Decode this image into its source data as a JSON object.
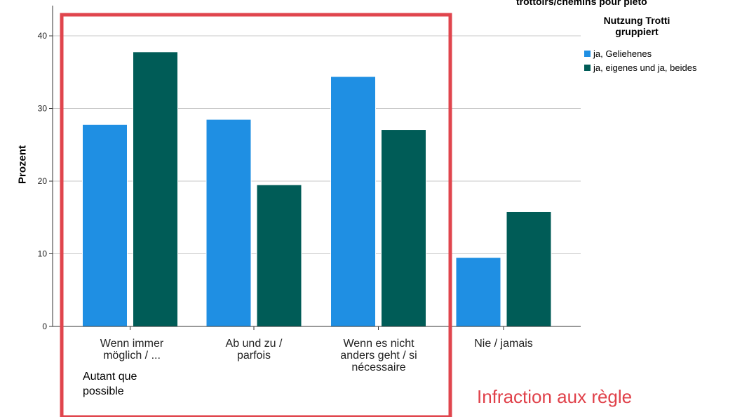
{
  "chart_data": {
    "type": "bar",
    "categories": [
      "Wenn immer\nmöglich / ...",
      "Ab und zu /\nparfois",
      "Wenn es nicht\nanders geht / si\nnécessaire",
      "Nie / jamais"
    ],
    "series": [
      {
        "name": "ja, Geliehenes",
        "values": [
          27.8,
          28.5,
          34.4,
          9.5
        ],
        "color": "#1f8fe3"
      },
      {
        "name": "ja, eigenes und ja, beides",
        "values": [
          37.8,
          19.5,
          27.1,
          15.8
        ],
        "color": "#005c57"
      }
    ],
    "ylabel": "Prozent",
    "ylim": [
      0,
      43
    ],
    "yticks": [
      0,
      10,
      20,
      30,
      40
    ],
    "grid": true,
    "legend_title": "Nutzung Trotti\ngruppiert",
    "legend_position": "top-right",
    "clipped_title": "trottoirs/chemins pour piéto"
  },
  "annotations": {
    "overlay_label": "Autant que\npossible",
    "footer_text": "Infraction aux règle",
    "highlight_color": "#e0454d"
  }
}
